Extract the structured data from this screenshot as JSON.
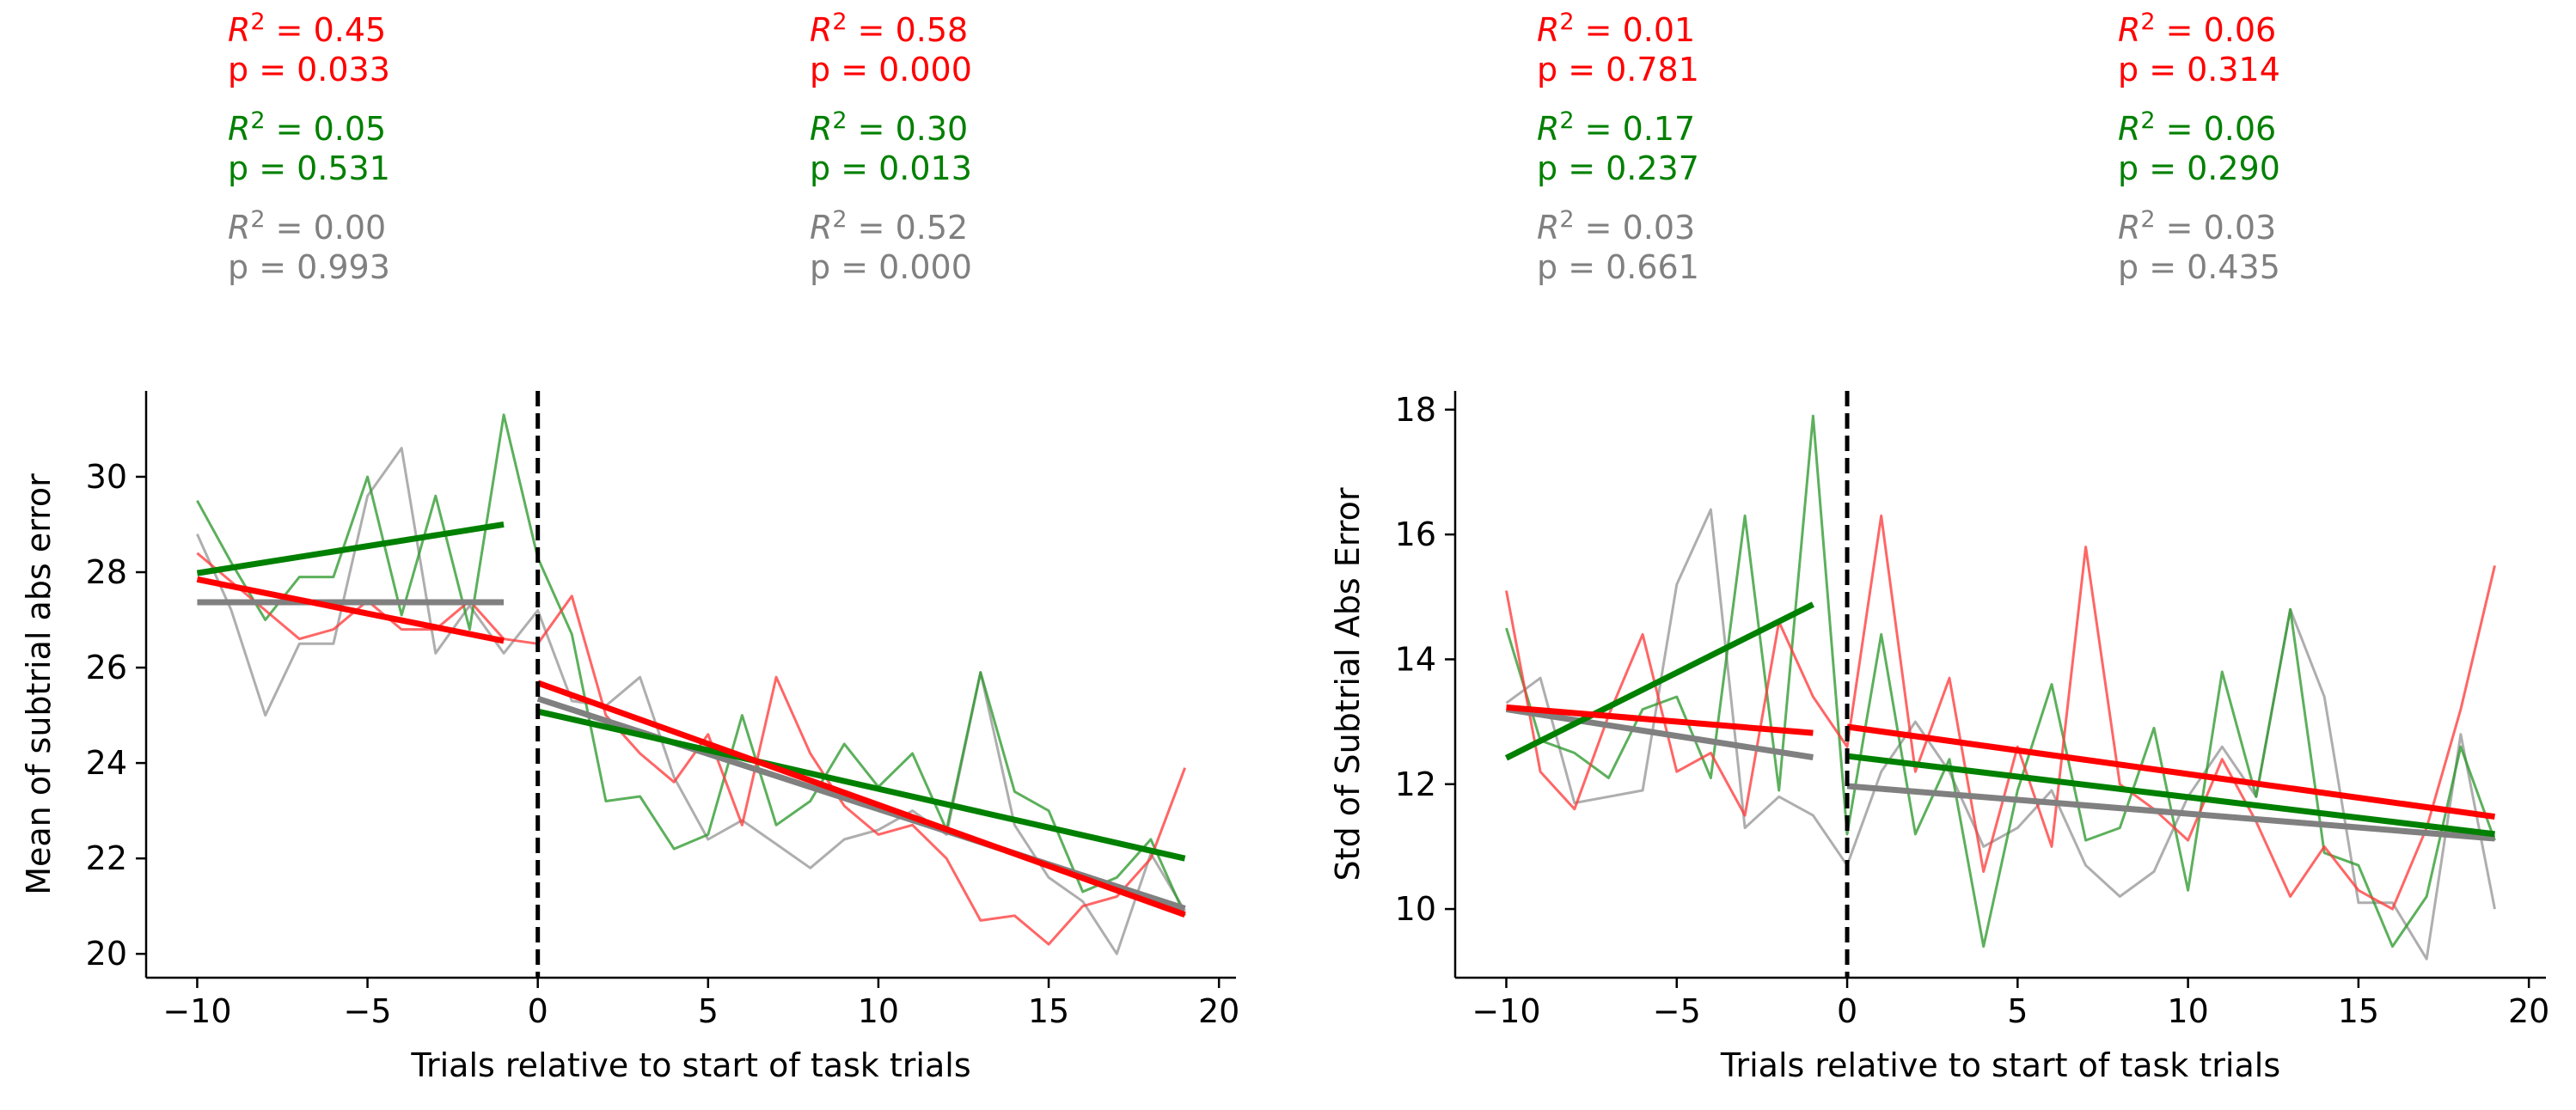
{
  "colors": {
    "red": "#ff0000",
    "green": "#008000",
    "gray": "#808080",
    "raw_red": "#ff3b3b",
    "raw_green": "#2e9a2e",
    "raw_gray": "#a0a0a0",
    "axis": "#000000"
  },
  "chart_data": [
    {
      "type": "line",
      "xlabel": "Trials relative to start of task trials",
      "ylabel": "Mean of subtrial abs error",
      "xlim": [
        -11.5,
        20.5
      ],
      "ylim": [
        19.5,
        31.8
      ],
      "xticks": [
        -10,
        -5,
        0,
        5,
        10,
        15,
        20
      ],
      "xtick_labels": [
        "−10",
        "−5",
        "0",
        "5",
        "10",
        "15",
        "20"
      ],
      "yticks": [
        20,
        22,
        24,
        26,
        28,
        30
      ],
      "ytick_labels": [
        "20",
        "22",
        "24",
        "26",
        "28",
        "30"
      ],
      "vline_x": 0,
      "grid": false,
      "series": [
        {
          "color_key": "gray",
          "x": [
            -10,
            -9,
            -8,
            -7,
            -6,
            -5,
            -4,
            -3,
            -2,
            -1,
            0,
            1,
            2,
            3,
            4,
            5,
            6,
            7,
            8,
            9,
            10,
            11,
            12,
            13,
            14,
            15,
            16,
            17,
            18,
            19
          ],
          "y": [
            28.8,
            27.2,
            25.0,
            26.5,
            26.5,
            29.6,
            30.6,
            26.3,
            27.3,
            26.3,
            27.2,
            25.3,
            25.2,
            25.8,
            23.7,
            22.4,
            22.8,
            22.3,
            21.8,
            22.4,
            22.6,
            23.0,
            22.5,
            25.9,
            22.7,
            21.6,
            21.1,
            20.0,
            22.1,
            20.9
          ],
          "fits": [
            {
              "x0": -10,
              "y0": 27.37,
              "x1": -1,
              "y1": 27.37
            },
            {
              "x0": 0,
              "y0": 25.35,
              "x1": 19,
              "y1": 20.95
            }
          ]
        },
        {
          "color_key": "green",
          "x": [
            -10,
            -9,
            -8,
            -7,
            -6,
            -5,
            -4,
            -3,
            -2,
            -1,
            0,
            1,
            2,
            3,
            4,
            5,
            6,
            7,
            8,
            9,
            10,
            11,
            12,
            13,
            14,
            15,
            16,
            17,
            18,
            19
          ],
          "y": [
            29.5,
            28.2,
            27.0,
            27.9,
            27.9,
            30.0,
            27.1,
            29.6,
            26.8,
            31.3,
            28.3,
            26.7,
            23.2,
            23.3,
            22.2,
            22.5,
            25.0,
            22.7,
            23.2,
            24.4,
            23.5,
            24.2,
            22.6,
            25.9,
            23.4,
            23.0,
            21.3,
            21.6,
            22.4,
            20.8
          ],
          "fits": [
            {
              "x0": -10,
              "y0": 27.98,
              "x1": -1,
              "y1": 29.0
            },
            {
              "x0": 0,
              "y0": 25.08,
              "x1": 19,
              "y1": 22.0
            }
          ]
        },
        {
          "color_key": "red",
          "x": [
            -10,
            -9,
            -8,
            -7,
            -6,
            -5,
            -4,
            -3,
            -2,
            -1,
            0,
            1,
            2,
            3,
            4,
            5,
            6,
            7,
            8,
            9,
            10,
            11,
            12,
            13,
            14,
            15,
            16,
            17,
            18,
            19
          ],
          "y": [
            28.4,
            27.8,
            27.2,
            26.6,
            26.8,
            27.4,
            26.8,
            26.8,
            27.4,
            26.6,
            26.5,
            27.5,
            25.0,
            24.2,
            23.6,
            24.6,
            22.7,
            25.8,
            24.2,
            23.1,
            22.5,
            22.7,
            22.0,
            20.7,
            20.8,
            20.2,
            21.0,
            21.2,
            22.0,
            23.9
          ],
          "fits": [
            {
              "x0": -10,
              "y0": 27.85,
              "x1": -1,
              "y1": 26.56
            },
            {
              "x0": 0,
              "y0": 25.68,
              "x1": 19,
              "y1": 20.82
            }
          ]
        }
      ],
      "stats": {
        "pre": {
          "red": {
            "r2": "0.45",
            "p": "p = 0.033"
          },
          "green": {
            "r2": "0.05",
            "p": "p = 0.531"
          },
          "gray": {
            "r2": "0.00",
            "p": "p = 0.993"
          }
        },
        "post": {
          "red": {
            "r2": "0.58",
            "p": "p = 0.000"
          },
          "green": {
            "r2": "0.30",
            "p": "p = 0.013"
          },
          "gray": {
            "r2": "0.52",
            "p": "p = 0.000"
          }
        }
      }
    },
    {
      "type": "line",
      "xlabel": "Trials relative to start of task trials",
      "ylabel": "Std of Subtrial Abs Error",
      "xlim": [
        -11.5,
        20.5
      ],
      "ylim": [
        8.9,
        18.3
      ],
      "xticks": [
        -10,
        -5,
        0,
        5,
        10,
        15,
        20
      ],
      "xtick_labels": [
        "−10",
        "−5",
        "0",
        "5",
        "10",
        "15",
        "20"
      ],
      "yticks": [
        10,
        12,
        14,
        16,
        18
      ],
      "ytick_labels": [
        "10",
        "12",
        "14",
        "16",
        "18"
      ],
      "vline_x": 0,
      "grid": false,
      "series": [
        {
          "color_key": "gray",
          "x": [
            -10,
            -9,
            -8,
            -7,
            -6,
            -5,
            -4,
            -3,
            -2,
            -1,
            0,
            1,
            2,
            3,
            4,
            5,
            6,
            7,
            8,
            9,
            10,
            11,
            12,
            13,
            14,
            15,
            16,
            17,
            18,
            19
          ],
          "y": [
            13.3,
            13.7,
            11.7,
            11.8,
            11.9,
            15.2,
            16.4,
            11.3,
            11.8,
            11.5,
            10.7,
            12.2,
            13.0,
            12.2,
            11.0,
            11.3,
            11.9,
            10.7,
            10.2,
            10.6,
            11.8,
            12.6,
            11.8,
            14.8,
            13.4,
            10.1,
            10.1,
            9.2,
            12.8,
            10.0
          ],
          "fits": [
            {
              "x0": -10,
              "y0": 13.2,
              "x1": -1,
              "y1": 12.43
            },
            {
              "x0": 0,
              "y0": 11.97,
              "x1": 19,
              "y1": 11.13
            }
          ]
        },
        {
          "color_key": "green",
          "x": [
            -10,
            -9,
            -8,
            -7,
            -6,
            -5,
            -4,
            -3,
            -2,
            -1,
            0,
            1,
            2,
            3,
            4,
            5,
            6,
            7,
            8,
            9,
            10,
            11,
            12,
            13,
            14,
            15,
            16,
            17,
            18,
            19
          ],
          "y": [
            14.5,
            12.7,
            12.5,
            12.1,
            13.2,
            13.4,
            12.1,
            16.3,
            11.9,
            17.9,
            11.2,
            14.4,
            11.2,
            12.4,
            9.4,
            11.9,
            13.6,
            11.1,
            11.3,
            12.9,
            10.3,
            13.8,
            11.8,
            14.8,
            10.9,
            10.7,
            9.4,
            10.2,
            12.6,
            11.1
          ],
          "fits": [
            {
              "x0": -10,
              "y0": 12.42,
              "x1": -1,
              "y1": 14.88
            },
            {
              "x0": 0,
              "y0": 12.45,
              "x1": 19,
              "y1": 11.2
            }
          ]
        },
        {
          "color_key": "red",
          "x": [
            -10,
            -9,
            -8,
            -7,
            -6,
            -5,
            -4,
            -3,
            -2,
            -1,
            0,
            1,
            2,
            3,
            4,
            5,
            6,
            7,
            8,
            9,
            10,
            11,
            12,
            13,
            14,
            15,
            16,
            17,
            18,
            19
          ],
          "y": [
            15.1,
            12.2,
            11.6,
            13.1,
            14.4,
            12.2,
            12.5,
            11.5,
            14.6,
            13.4,
            12.6,
            16.3,
            12.2,
            13.7,
            10.6,
            12.6,
            11.0,
            15.8,
            12.0,
            11.6,
            11.1,
            12.4,
            11.4,
            10.2,
            11.0,
            10.3,
            10.0,
            11.3,
            13.2,
            15.5
          ],
          "fits": [
            {
              "x0": -10,
              "y0": 13.23,
              "x1": -1,
              "y1": 12.82
            },
            {
              "x0": 0,
              "y0": 12.92,
              "x1": 19,
              "y1": 11.48
            }
          ]
        }
      ],
      "stats": {
        "pre": {
          "red": {
            "r2": "0.01",
            "p": "p = 0.781"
          },
          "green": {
            "r2": "0.17",
            "p": "p = 0.237"
          },
          "gray": {
            "r2": "0.03",
            "p": "p = 0.661"
          }
        },
        "post": {
          "red": {
            "r2": "0.06",
            "p": "p = 0.314"
          },
          "green": {
            "r2": "0.06",
            "p": "p = 0.290"
          },
          "gray": {
            "r2": "0.03",
            "p": "p = 0.435"
          }
        }
      }
    }
  ]
}
